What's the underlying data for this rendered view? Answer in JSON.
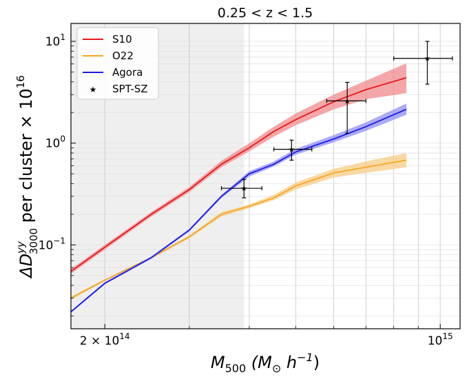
{
  "chart_data": {
    "type": "line",
    "title": "0.25 < z < 1.5",
    "xlabel": {
      "main": "M",
      "sub": "500",
      "rest": " (M",
      "sub2": "⊙",
      "rest2": " h",
      "sup": "−1",
      "close": ")"
    },
    "ylabel": {
      "main": "ΔD",
      "sup": "yy",
      "sub": "3000",
      "rest": " per cluster × 10",
      "sup2": "16"
    },
    "xscale": "log",
    "yscale": "log",
    "xlim": [
      170000000000000,
      1100000000000000
    ],
    "ylim": [
      0.015,
      15
    ],
    "xticks_major": [
      {
        "value": 200000000000000,
        "label_main": "2 × 10",
        "label_sup": "14"
      },
      {
        "value": 1000000000000000,
        "label_main": "10",
        "label_sup": "15"
      }
    ],
    "xticks_minor": [
      300000000000000,
      400000000000000,
      500000000000000,
      600000000000000,
      700000000000000,
      800000000000000,
      900000000000000
    ],
    "yticks_major": [
      {
        "value": 0.1,
        "label_main": "10",
        "label_sup": "−1"
      },
      {
        "value": 1,
        "label_main": "10",
        "label_sup": "0"
      },
      {
        "value": 10,
        "label_main": "10",
        "label_sup": "1"
      }
    ],
    "shaded_region": {
      "x_from": 170000000000000,
      "x_to": 390000000000000,
      "color": "#e0e0e0"
    },
    "grid": true,
    "legend_position": "top-left",
    "series": [
      {
        "name": "S10",
        "color": "#e8161b",
        "band_color": "#f08a8b",
        "x": [
          170000000000000,
          200000000000000,
          250000000000000,
          300000000000000,
          350000000000000,
          400000000000000,
          450000000000000,
          500000000000000,
          600000000000000,
          700000000000000,
          850000000000000
        ],
        "values": [
          0.055,
          0.095,
          0.2,
          0.35,
          0.62,
          0.9,
          1.3,
          1.7,
          2.55,
          3.35,
          4.4
        ],
        "lower": [
          0.052,
          0.09,
          0.19,
          0.33,
          0.58,
          0.83,
          1.16,
          1.5,
          2.15,
          2.7,
          3.1
        ],
        "upper": [
          0.058,
          0.1,
          0.21,
          0.37,
          0.67,
          1.0,
          1.45,
          1.95,
          3.0,
          4.1,
          6.1
        ]
      },
      {
        "name": "O22",
        "color": "#f5a623",
        "band_color": "#f7cc84",
        "x": [
          170000000000000,
          200000000000000,
          250000000000000,
          300000000000000,
          350000000000000,
          400000000000000,
          450000000000000,
          500000000000000,
          600000000000000,
          700000000000000,
          850000000000000
        ],
        "values": [
          0.03,
          0.045,
          0.075,
          0.12,
          0.2,
          0.24,
          0.29,
          0.38,
          0.51,
          0.58,
          0.68
        ],
        "lower": [
          0.029,
          0.044,
          0.073,
          0.116,
          0.19,
          0.23,
          0.275,
          0.35,
          0.46,
          0.51,
          0.58
        ],
        "upper": [
          0.031,
          0.046,
          0.077,
          0.124,
          0.21,
          0.25,
          0.31,
          0.41,
          0.56,
          0.66,
          0.8
        ]
      },
      {
        "name": "Agora",
        "color": "#1a1aeb",
        "band_color": "#8f8ff2",
        "x": [
          170000000000000,
          200000000000000,
          250000000000000,
          300000000000000,
          350000000000000,
          400000000000000,
          450000000000000,
          500000000000000,
          600000000000000,
          700000000000000,
          850000000000000
        ],
        "values": [
          0.022,
          0.042,
          0.075,
          0.14,
          0.3,
          0.5,
          0.62,
          0.82,
          1.1,
          1.45,
          2.15
        ],
        "lower": [
          0.0215,
          0.041,
          0.073,
          0.136,
          0.29,
          0.47,
          0.59,
          0.77,
          1.02,
          1.32,
          1.9
        ],
        "upper": [
          0.0225,
          0.043,
          0.077,
          0.144,
          0.31,
          0.53,
          0.66,
          0.88,
          1.2,
          1.6,
          2.45
        ]
      }
    ],
    "points": {
      "name": "SPT-SZ",
      "marker": "★",
      "color": "#000000",
      "data": [
        {
          "x": 390000000000000,
          "y": 0.36,
          "xerr_low": 350000000000000,
          "xerr_high": 425000000000000,
          "yerr_low": 0.29,
          "yerr_high": 0.44
        },
        {
          "x": 490000000000000,
          "y": 0.87,
          "xerr_low": 450000000000000,
          "xerr_high": 540000000000000,
          "yerr_low": 0.68,
          "yerr_high": 1.07
        },
        {
          "x": 640000000000000,
          "y": 2.6,
          "xerr_low": 580000000000000,
          "xerr_high": 700000000000000,
          "yerr_low": 1.25,
          "yerr_high": 3.95
        },
        {
          "x": 940000000000000,
          "y": 6.8,
          "xerr_low": 800000000000000,
          "xerr_high": 1060000000000000,
          "yerr_low": 3.8,
          "yerr_high": 10
        }
      ]
    }
  }
}
